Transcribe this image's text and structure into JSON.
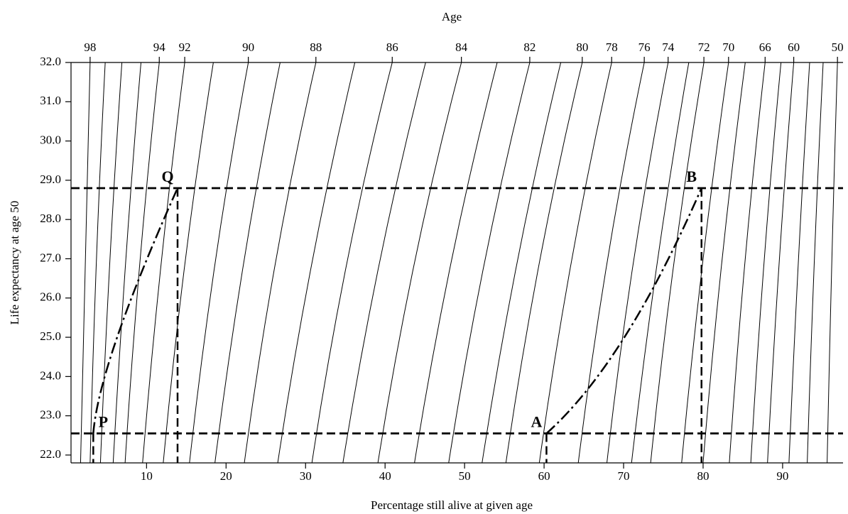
{
  "chart_data": {
    "type": "nomogram",
    "title": "Age",
    "x_label": "Percentage still alive at given age",
    "y_label": "Life expectancy at age 50",
    "xlim": [
      0.5,
      97.6
    ],
    "ylim": [
      21.8,
      32.0
    ],
    "xticks": [
      10,
      20,
      30,
      40,
      50,
      60,
      70,
      80,
      90
    ],
    "yticks": [
      {
        "value": 22,
        "label": "22.0"
      },
      {
        "value": 23,
        "label": "23.0"
      },
      {
        "value": 24,
        "label": "24.0"
      },
      {
        "value": 25,
        "label": "25.0"
      },
      {
        "value": 26,
        "label": "26.0"
      },
      {
        "value": 27,
        "label": "27.0"
      },
      {
        "value": 28,
        "label": "28.0"
      },
      {
        "value": 29,
        "label": "29.0"
      },
      {
        "value": 30,
        "label": "30.0"
      },
      {
        "value": 31,
        "label": "31.0"
      },
      {
        "value": 32,
        "label": "32.0"
      }
    ],
    "curve_y": [
      21.8,
      27.0,
      32.0
    ],
    "curves": [
      {
        "age": 98,
        "x": [
          1.7,
          2.3,
          2.9
        ]
      },
      {
        "age": null,
        "x": [
          2.9,
          3.7,
          4.8
        ]
      },
      {
        "age": null,
        "x": [
          4.2,
          5.4,
          6.9
        ]
      },
      {
        "age": null,
        "x": [
          5.8,
          7.4,
          9.3
        ]
      },
      {
        "age": 94,
        "x": [
          7.3,
          9.2,
          11.6
        ]
      },
      {
        "age": 92,
        "x": [
          9.5,
          11.9,
          14.8
        ]
      },
      {
        "age": null,
        "x": [
          12.1,
          14.9,
          18.4
        ]
      },
      {
        "age": 90,
        "x": [
          15.4,
          18.7,
          22.8
        ]
      },
      {
        "age": null,
        "x": [
          18.6,
          22.3,
          26.8
        ]
      },
      {
        "age": 88,
        "x": [
          22.3,
          26.3,
          31.3
        ]
      },
      {
        "age": null,
        "x": [
          26.5,
          30.9,
          36.2
        ]
      },
      {
        "age": 86,
        "x": [
          30.8,
          35.3,
          40.9
        ]
      },
      {
        "age": null,
        "x": [
          34.7,
          39.4,
          45.1
        ]
      },
      {
        "age": 84,
        "x": [
          39.1,
          43.8,
          49.6
        ]
      },
      {
        "age": null,
        "x": [
          43.7,
          48.4,
          54.1
        ]
      },
      {
        "age": 82,
        "x": [
          48.0,
          52.6,
          58.2
        ]
      },
      {
        "age": null,
        "x": [
          52.2,
          56.7,
          62.1
        ]
      },
      {
        "age": 80,
        "x": [
          55.2,
          59.5,
          64.8
        ]
      },
      {
        "age": 78,
        "x": [
          59.4,
          63.5,
          68.5
        ]
      },
      {
        "age": 76,
        "x": [
          64.3,
          68.0,
          72.6
        ]
      },
      {
        "age": 74,
        "x": [
          67.9,
          71.3,
          75.6
        ]
      },
      {
        "age": null,
        "x": [
          71.0,
          74.3,
          78.2
        ]
      },
      {
        "age": 72,
        "x": [
          73.4,
          76.4,
          80.1
        ]
      },
      {
        "age": 70,
        "x": [
          77.3,
          80.0,
          83.2
        ]
      },
      {
        "age": null,
        "x": [
          80.0,
          82.4,
          85.3
        ]
      },
      {
        "age": 66,
        "x": [
          83.3,
          85.3,
          87.8
        ]
      },
      {
        "age": null,
        "x": [
          86.0,
          87.7,
          89.8
        ]
      },
      {
        "age": 60,
        "x": [
          88.1,
          89.6,
          91.4
        ]
      },
      {
        "age": null,
        "x": [
          90.8,
          92.0,
          93.4
        ]
      },
      {
        "age": null,
        "x": [
          93.1,
          94.0,
          95.1
        ]
      },
      {
        "age": 50,
        "x": [
          95.6,
          96.2,
          96.9
        ]
      }
    ],
    "points": [
      {
        "label": "P",
        "x": 3.3,
        "y": 22.55
      },
      {
        "label": "Q",
        "x": 13.9,
        "y": 28.8
      },
      {
        "label": "A",
        "x": 60.3,
        "y": 22.55
      },
      {
        "label": "B",
        "x": 79.8,
        "y": 28.8
      }
    ],
    "paths": [
      {
        "x": [
          3.3,
          6.3,
          13.9
        ],
        "y": [
          22.55,
          25.0,
          28.8
        ]
      },
      {
        "x": [
          60.3,
          70.1,
          79.8
        ],
        "y": [
          22.55,
          25.0,
          28.8
        ]
      }
    ]
  }
}
